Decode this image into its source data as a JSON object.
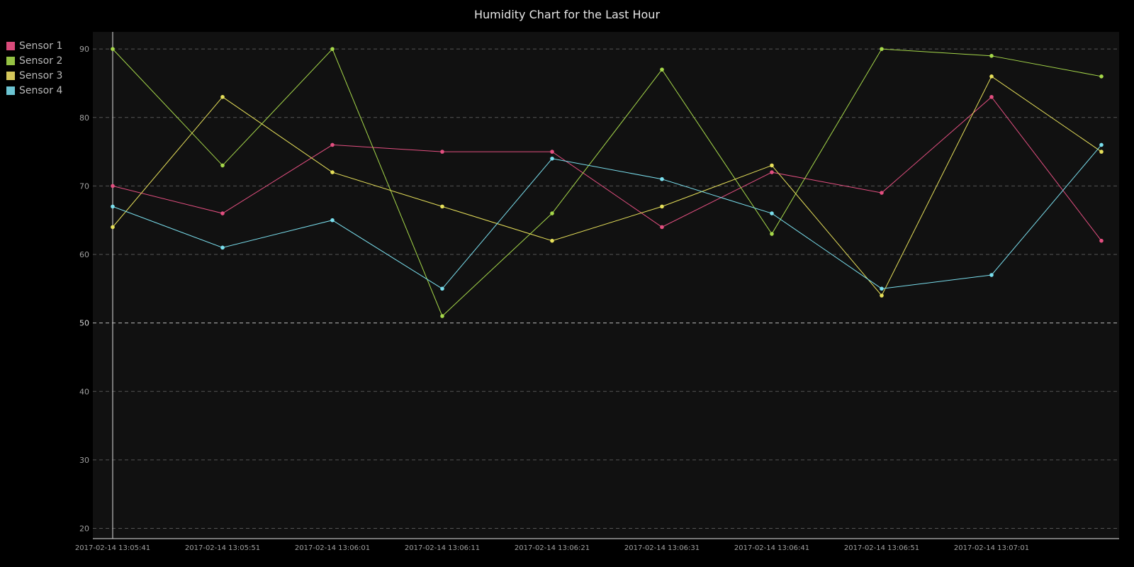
{
  "chart_data": {
    "type": "line",
    "title": "Humidity Chart for the Last Hour",
    "xlabel": "",
    "ylabel": "",
    "x": [
      "2017-02-14 13:05:41",
      "2017-02-14 13:05:51",
      "2017-02-14 13:06:01",
      "2017-02-14 13:06:11",
      "2017-02-14 13:06:21",
      "2017-02-14 13:06:31",
      "2017-02-14 13:06:41",
      "2017-02-14 13:06:51",
      "2017-02-14 13:07:01",
      "2017-02-14 13:07:11"
    ],
    "x_tick_labels": [
      "2017-02-14 13:05:41",
      "2017-02-14 13:05:51",
      "2017-02-14 13:06:01",
      "2017-02-14 13:06:11",
      "2017-02-14 13:06:21",
      "2017-02-14 13:06:31",
      "2017-02-14 13:06:41",
      "2017-02-14 13:06:51",
      "2017-02-14 13:07:01"
    ],
    "y_ticks": [
      20,
      30,
      40,
      50,
      60,
      70,
      80,
      90
    ],
    "ylim": [
      18.5,
      92.5
    ],
    "grid": true,
    "legend_position": "top-left",
    "series": [
      {
        "name": "Sensor 1",
        "color": "#e34f80",
        "values": [
          70,
          66,
          76,
          75,
          75,
          64,
          72,
          69,
          83,
          62
        ]
      },
      {
        "name": "Sensor 2",
        "color": "#a6d84a",
        "values": [
          90,
          73,
          90,
          51,
          66,
          87,
          63,
          90,
          89,
          86
        ]
      },
      {
        "name": "Sensor 3",
        "color": "#e7e05a",
        "values": [
          64,
          83,
          72,
          67,
          62,
          67,
          73,
          54,
          86,
          75
        ]
      },
      {
        "name": "Sensor 4",
        "color": "#7adfee",
        "values": [
          67,
          61,
          65,
          55,
          74,
          71,
          66,
          55,
          57,
          76
        ]
      }
    ]
  },
  "legend": {
    "items": [
      {
        "label": "Sensor 1",
        "swatch": "#d94a7a"
      },
      {
        "label": "Sensor 2",
        "swatch": "#95c243"
      },
      {
        "label": "Sensor 3",
        "swatch": "#d4c65a"
      },
      {
        "label": "Sensor 4",
        "swatch": "#6cc5d3"
      }
    ]
  }
}
